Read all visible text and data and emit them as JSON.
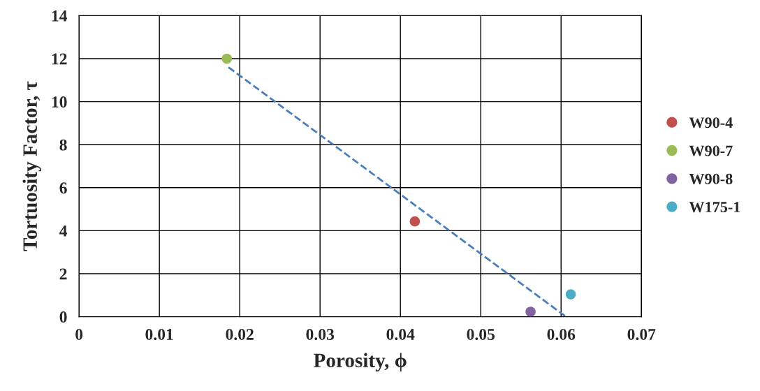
{
  "chart_data": {
    "type": "scatter",
    "xlabel": "Porosity, ϕ",
    "ylabel": "Tortuosity Factor, τ",
    "xlim": [
      0,
      0.07
    ],
    "xticks": [
      {
        "value": 0,
        "label": "0"
      },
      0.01,
      0.02,
      0.03,
      0.04,
      0.05,
      0.06,
      0.07
    ],
    "ylim": [
      0,
      14
    ],
    "yticks": [
      0,
      2,
      4,
      6,
      8,
      10,
      12,
      14
    ],
    "grid": true,
    "legend": "right",
    "series": [
      {
        "name": "W90-4",
        "marker": "circle",
        "color": "#c0504d",
        "x": [
          0.0418
        ],
        "values": [
          4.43
        ]
      },
      {
        "name": "W90-7",
        "marker": "circle",
        "color": "#9bbb59",
        "x": [
          0.0184
        ],
        "values": [
          12.0
        ]
      },
      {
        "name": "W90-8",
        "marker": "circle",
        "color": "#8064a2",
        "x": [
          0.0562
        ],
        "values": [
          0.23
        ]
      },
      {
        "name": "W175-1",
        "marker": "circle",
        "color": "#4bacc6",
        "x": [
          0.0612
        ],
        "values": [
          1.04
        ]
      },
      {
        "type": "line",
        "color": "#4a7ebb",
        "line_style": "dashed",
        "x": [
          0.0186,
          0.0606
        ],
        "values": [
          11.6,
          0
        ]
      }
    ]
  }
}
